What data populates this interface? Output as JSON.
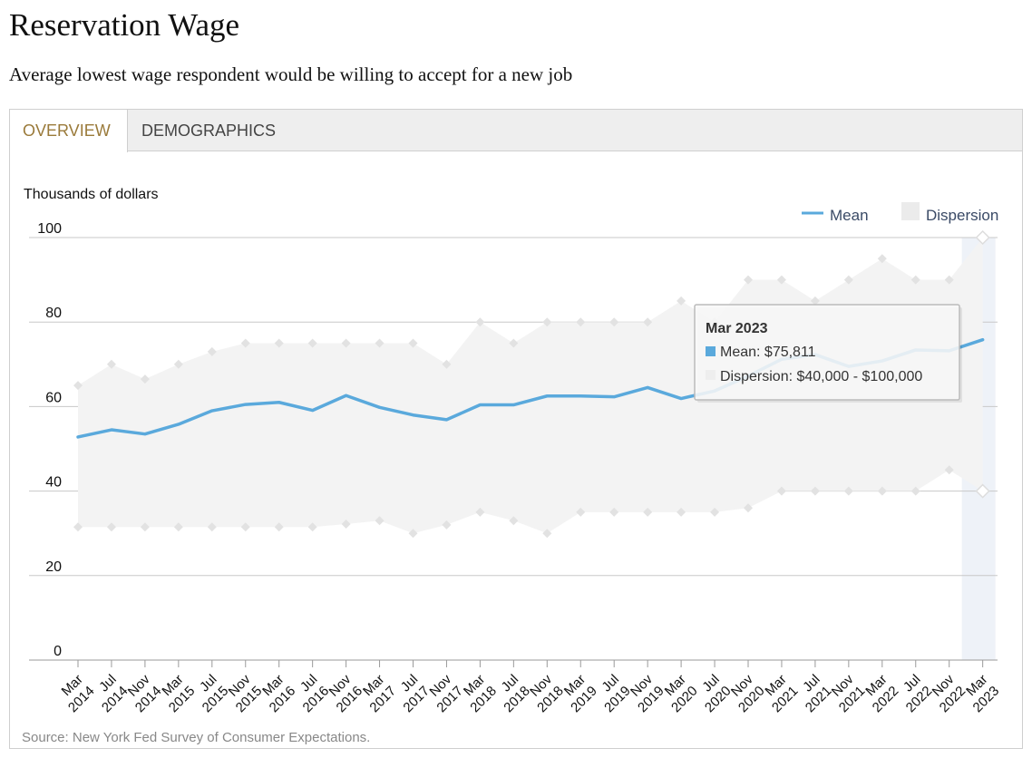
{
  "page": {
    "title": "Reservation Wage",
    "subtitle": "Average lowest wage respondent would be willing to accept for a new job"
  },
  "tabs": [
    {
      "label": "OVERVIEW",
      "active": true
    },
    {
      "label": "DEMOGRAPHICS",
      "active": false
    }
  ],
  "colors": {
    "mean_line": "#5aa9dc",
    "dispersion_fill": "#f3f3f3",
    "dispersion_marker": "#e2e2e2",
    "active_tab_text": "#9a7a3a",
    "highlight_band": "#eef2f8"
  },
  "chart_data": {
    "type": "line",
    "ylabel": "Thousands of dollars",
    "ylim": [
      0,
      100
    ],
    "yticks": [
      0,
      20,
      40,
      60,
      80,
      100
    ],
    "grid": true,
    "legend_position": "top-right",
    "categories": [
      "Mar 2014",
      "Jul 2014",
      "Nov 2014",
      "Mar 2015",
      "Jul 2015",
      "Nov 2015",
      "Mar 2016",
      "Jul 2016",
      "Nov 2016",
      "Mar 2017",
      "Jul 2017",
      "Nov 2017",
      "Mar 2018",
      "Jul 2018",
      "Nov 2018",
      "Mar 2019",
      "Jul 2019",
      "Nov 2019",
      "Mar 2020",
      "Jul 2020",
      "Nov 2020",
      "Mar 2021",
      "Jul 2021",
      "Nov 2021",
      "Mar 2022",
      "Jul 2022",
      "Nov 2022",
      "Mar 2023"
    ],
    "series": [
      {
        "name": "Mean",
        "type": "line",
        "values": [
          52.8,
          54.5,
          53.5,
          55.8,
          59.0,
          60.5,
          61.0,
          59.1,
          62.6,
          59.8,
          58.0,
          56.9,
          60.4,
          60.4,
          62.5,
          62.5,
          62.3,
          64.5,
          61.9,
          63.7,
          67.2,
          71.2,
          72.3,
          69.5,
          70.8,
          73.4,
          73.2,
          75.811
        ]
      },
      {
        "name": "Dispersion",
        "type": "arearange",
        "low": [
          31.5,
          31.5,
          31.5,
          31.5,
          31.5,
          31.5,
          31.5,
          31.5,
          32.2,
          33.0,
          30.0,
          32.0,
          35.0,
          33.0,
          30.0,
          35.0,
          35.0,
          35.0,
          35.0,
          35.0,
          36.0,
          40.0,
          40.0,
          40.0,
          40.0,
          40.0,
          45.0,
          40.0
        ],
        "high": [
          65.0,
          70.0,
          66.5,
          70.0,
          73.0,
          75.0,
          75.0,
          75.0,
          75.0,
          75.0,
          75.0,
          70.0,
          80.0,
          75.0,
          80.0,
          80.0,
          80.0,
          80.0,
          85.0,
          80.0,
          90.0,
          90.0,
          85.0,
          90.0,
          95.0,
          90.0,
          90.0,
          100.0
        ]
      }
    ],
    "xtick_labels": [
      {
        "top": "Mar",
        "bottom": "2014"
      },
      {
        "top": "Jul",
        "bottom": "2014"
      },
      {
        "top": "Nov",
        "bottom": "2014"
      },
      {
        "top": "Mar",
        "bottom": "2015"
      },
      {
        "top": "Jul",
        "bottom": "2015"
      },
      {
        "top": "Nov",
        "bottom": "2015"
      },
      {
        "top": "Mar",
        "bottom": "2016"
      },
      {
        "top": "Jul",
        "bottom": "2016"
      },
      {
        "top": "Nov",
        "bottom": "2016"
      },
      {
        "top": "Mar",
        "bottom": "2017"
      },
      {
        "top": "Jul",
        "bottom": "2017"
      },
      {
        "top": "Nov",
        "bottom": "2017"
      },
      {
        "top": "Mar",
        "bottom": "2018"
      },
      {
        "top": "Jul",
        "bottom": "2018"
      },
      {
        "top": "Nov",
        "bottom": "2018"
      },
      {
        "top": "Mar",
        "bottom": "2019"
      },
      {
        "top": "Jul",
        "bottom": "2019"
      },
      {
        "top": "Nov",
        "bottom": "2019"
      },
      {
        "top": "Mar",
        "bottom": "2020"
      },
      {
        "top": "Jul",
        "bottom": "2020"
      },
      {
        "top": "Nov",
        "bottom": "2020"
      },
      {
        "top": "Mar",
        "bottom": "2021"
      },
      {
        "top": "Jul",
        "bottom": "2021"
      },
      {
        "top": "Nov",
        "bottom": "2021"
      },
      {
        "top": "Mar",
        "bottom": "2022"
      },
      {
        "top": "Jul",
        "bottom": "2022"
      },
      {
        "top": "Nov",
        "bottom": "2022"
      },
      {
        "top": "Mar",
        "bottom": "2023"
      }
    ],
    "legend": [
      {
        "label": "Mean",
        "icon": "line-swatch-icon"
      },
      {
        "label": "Dispersion",
        "icon": "square-swatch-icon"
      }
    ],
    "tooltip": {
      "title": "Mar 2023",
      "mean_text": "Mean: $75,811",
      "dispersion_text": "Dispersion: $40,000 - $100,000",
      "highlighted_category": "Mar 2023"
    },
    "source": "Source: New York Fed Survey of Consumer Expectations."
  }
}
